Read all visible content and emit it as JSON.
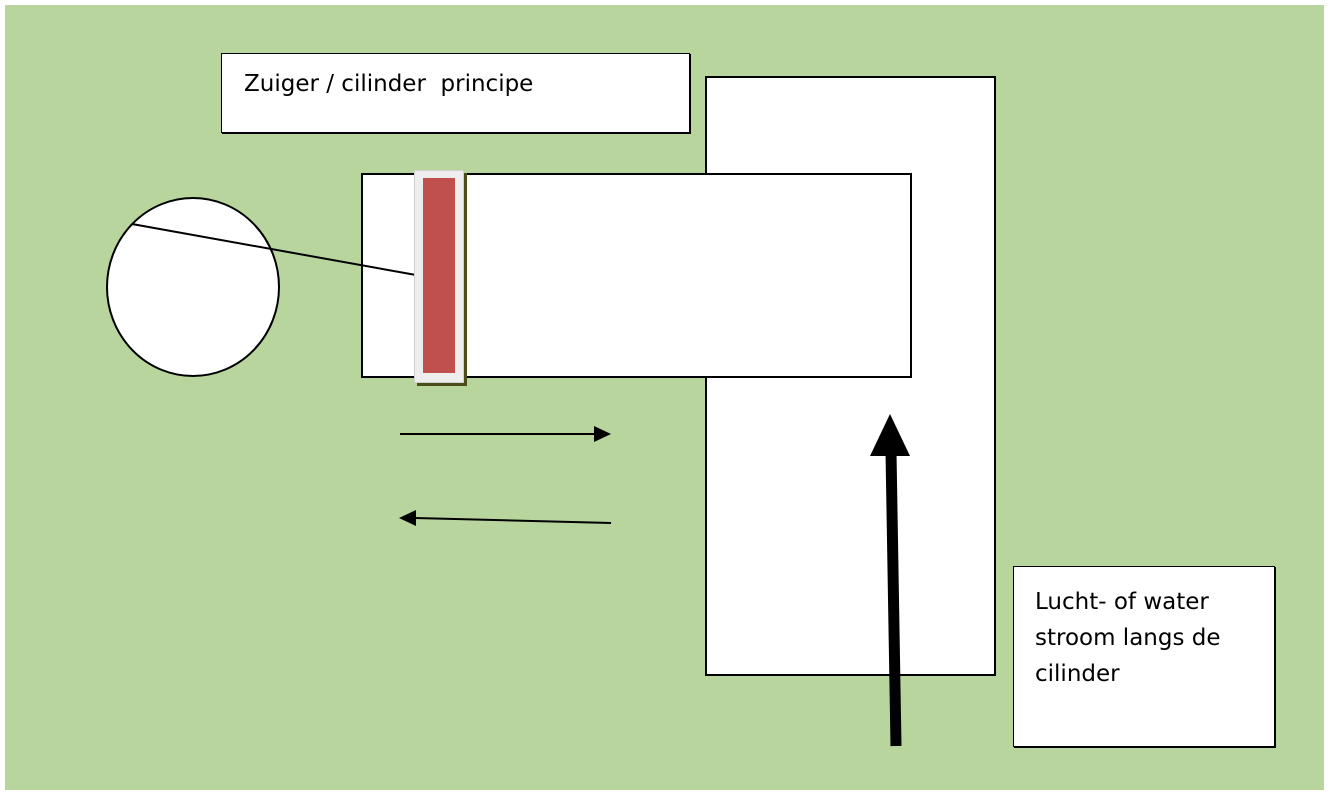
{
  "diagram": {
    "title": "Zuiger / cilinder  principe",
    "flow_note": "Lucht- of water stroom langs de cilinder",
    "colors": {
      "background": "#b7d59d",
      "piston": "#c0504d",
      "outline": "#000000"
    }
  }
}
